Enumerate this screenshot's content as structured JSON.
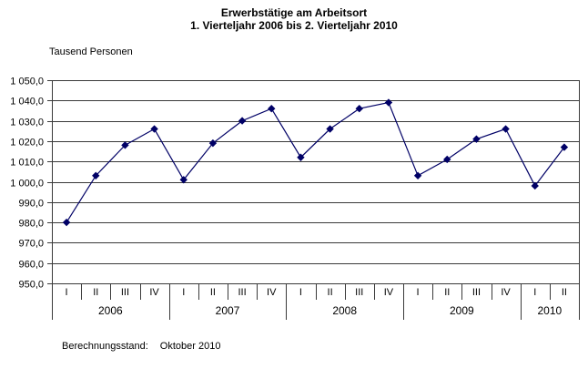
{
  "chart_data": {
    "type": "line",
    "title": "Erwerbstätige am Arbeitsort",
    "subtitle": "1. Vierteljahr 2006 bis 2. Vierteljahr 2010",
    "ylabel": "Tausend Personen",
    "xlabel": "",
    "ylim": [
      950,
      1050
    ],
    "grid": true,
    "legend": "none",
    "y_ticks": [
      {
        "value": 1050,
        "label": "1 050,0"
      },
      {
        "value": 1040,
        "label": "1 040,0"
      },
      {
        "value": 1030,
        "label": "1 030,0"
      },
      {
        "value": 1020,
        "label": "1 020,0"
      },
      {
        "value": 1010,
        "label": "1 010,0"
      },
      {
        "value": 1000,
        "label": "1 000,0"
      },
      {
        "value": 990,
        "label": "990,0"
      },
      {
        "value": 980,
        "label": "980,0"
      },
      {
        "value": 970,
        "label": "970,0"
      },
      {
        "value": 960,
        "label": "960,0"
      },
      {
        "value": 950,
        "label": "950,0"
      }
    ],
    "categories": [
      "I",
      "II",
      "III",
      "IV",
      "I",
      "II",
      "III",
      "IV",
      "I",
      "II",
      "III",
      "IV",
      "I",
      "II",
      "III",
      "IV",
      "I",
      "II"
    ],
    "year_groups": [
      {
        "label": "2006",
        "quarters": 4
      },
      {
        "label": "2007",
        "quarters": 4
      },
      {
        "label": "2008",
        "quarters": 4
      },
      {
        "label": "2009",
        "quarters": 4
      },
      {
        "label": "2010",
        "quarters": 2
      }
    ],
    "values": [
      980,
      1003,
      1018,
      1026,
      1001,
      1019,
      1030,
      1036,
      1012,
      1026,
      1036,
      1039,
      1003,
      1011,
      1021,
      1026,
      998,
      1017
    ],
    "marker": "diamond",
    "line_color": "#000066",
    "grid_color": "#3a3a3a"
  },
  "footer": {
    "label": "Berechnungsstand:",
    "value": "Oktober 2010"
  }
}
